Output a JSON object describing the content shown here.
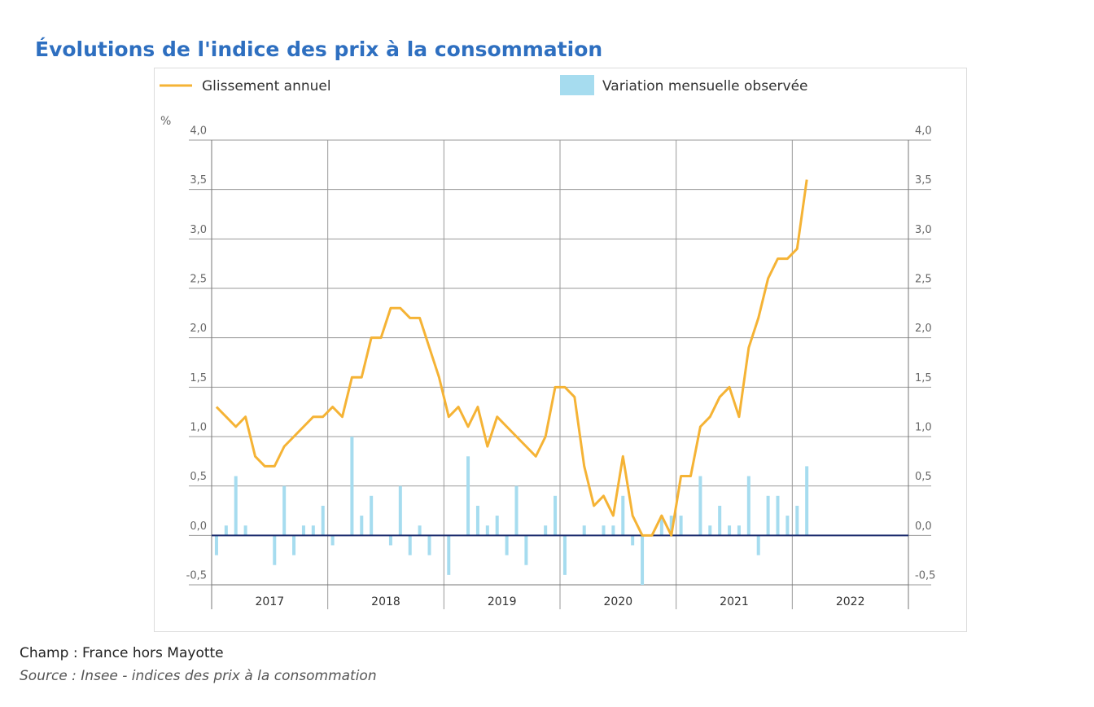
{
  "title": "Évolutions de l'indice des prix à la consommation",
  "notes": [
    "Champ : France hors Mayotte",
    "Source : Insee - indices des prix à la consommation"
  ],
  "chart_data": {
    "type": "combo",
    "y_unit": "%",
    "categories": [
      null,
      null,
      null,
      null,
      null,
      null,
      "2017",
      null,
      null,
      null,
      null,
      null,
      null,
      null,
      null,
      null,
      null,
      null,
      "2018",
      null,
      null,
      null,
      null,
      null,
      null,
      null,
      null,
      null,
      null,
      null,
      "2019",
      null,
      null,
      null,
      null,
      null,
      null,
      null,
      null,
      null,
      null,
      null,
      "2020",
      null,
      null,
      null,
      null,
      null,
      null,
      null,
      null,
      null,
      null,
      null,
      "2021",
      null,
      null,
      null,
      null,
      null,
      "2022",
      null
    ],
    "series": [
      {
        "name": "Glissement annuel",
        "type": "line",
        "color": "#f5b335",
        "values": [
          1.3,
          1.2,
          1.1,
          1.2,
          0.8,
          0.7,
          0.7,
          0.9,
          1.0,
          1.1,
          1.2,
          1.2,
          1.3,
          1.2,
          1.6,
          1.6,
          2.0,
          2.0,
          2.3,
          2.3,
          2.2,
          2.2,
          1.9,
          1.6,
          1.2,
          1.3,
          1.1,
          1.3,
          0.9,
          1.2,
          1.1,
          1.0,
          0.9,
          0.8,
          1.0,
          1.5,
          1.5,
          1.4,
          0.7,
          0.3,
          0.4,
          0.2,
          0.8,
          0.2,
          0.0,
          0.0,
          0.2,
          0.0,
          0.6,
          0.6,
          1.1,
          1.2,
          1.4,
          1.5,
          1.2,
          1.9,
          2.2,
          2.6,
          2.8,
          2.8,
          2.9,
          3.6
        ]
      },
      {
        "name": "Variation mensuelle observée",
        "type": "bar",
        "color": "#a6dcef",
        "values": [
          -0.2,
          0.1,
          0.6,
          0.1,
          0.0,
          0.0,
          -0.3,
          0.5,
          -0.2,
          0.1,
          0.1,
          0.3,
          -0.1,
          0.0,
          1.0,
          0.2,
          0.4,
          0.0,
          -0.1,
          0.5,
          -0.2,
          0.1,
          -0.2,
          0.0,
          -0.4,
          0.0,
          0.8,
          0.3,
          0.1,
          0.2,
          -0.2,
          0.5,
          -0.3,
          0.0,
          0.1,
          0.4,
          -0.4,
          0.0,
          0.1,
          0.0,
          0.1,
          0.1,
          0.4,
          -0.1,
          -0.5,
          0.0,
          0.2,
          0.2,
          0.2,
          0.0,
          0.6,
          0.1,
          0.3,
          0.1,
          0.1,
          0.6,
          -0.2,
          0.4,
          0.4,
          0.2,
          0.3,
          0.7
        ]
      }
    ],
    "ylim": [
      -0.5,
      4
    ],
    "yticks": [
      {
        "value": -0.5,
        "label": "-0,5"
      },
      {
        "value": 0,
        "label": "0,0"
      },
      {
        "value": 0.5,
        "label": "0,5"
      },
      {
        "value": 1,
        "label": "1,0"
      },
      {
        "value": 1.5,
        "label": "1,5"
      },
      {
        "value": 2,
        "label": "2,0"
      },
      {
        "value": 2.5,
        "label": "2,5"
      },
      {
        "value": 3,
        "label": "3,0"
      },
      {
        "value": 3.5,
        "label": "3,5"
      },
      {
        "value": 4,
        "label": "4,0"
      }
    ],
    "grid": true
  }
}
